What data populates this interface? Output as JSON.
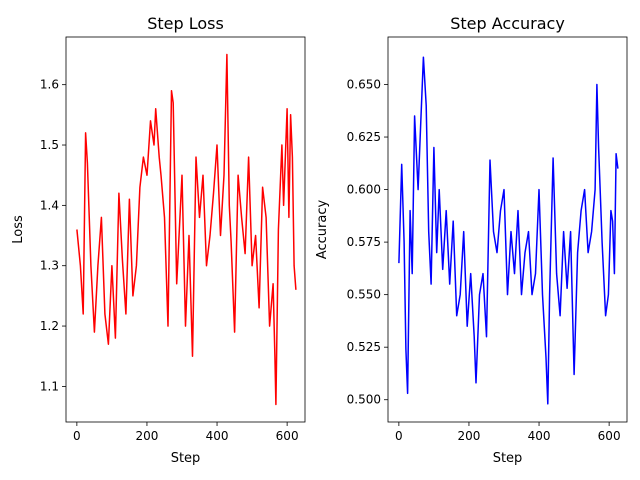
{
  "chart_data": [
    {
      "type": "line",
      "title": "Step Loss",
      "xlabel": "Step",
      "ylabel": "Loss",
      "xlim": [
        -31,
        651
      ],
      "ylim": [
        1.041,
        1.679
      ],
      "xticks": [
        0,
        200,
        400,
        600
      ],
      "xtick_labels": [
        "0",
        "200",
        "400",
        "600"
      ],
      "yticks": [
        1.1,
        1.2,
        1.3,
        1.4,
        1.5,
        1.6
      ],
      "ytick_labels": [
        "1.1",
        "1.2",
        "1.3",
        "1.4",
        "1.5",
        "1.6"
      ],
      "color": "#ff0000",
      "series": [
        {
          "x": [
            0,
            10,
            18,
            25,
            30,
            40,
            50,
            60,
            70,
            80,
            90,
            100,
            110,
            120,
            130,
            140,
            150,
            160,
            170,
            180,
            190,
            200,
            210,
            220,
            225,
            235,
            240,
            250,
            260,
            270,
            275,
            285,
            300,
            310,
            320,
            330,
            340,
            350,
            360,
            370,
            380,
            390,
            400,
            410,
            420,
            428,
            435,
            440,
            450,
            460,
            470,
            480,
            490,
            500,
            510,
            520,
            530,
            540,
            550,
            560,
            565,
            568,
            575,
            585,
            590,
            600,
            605,
            610,
            615,
            620,
            625
          ],
          "values": [
            1.36,
            1.3,
            1.22,
            1.52,
            1.47,
            1.3,
            1.19,
            1.3,
            1.38,
            1.22,
            1.17,
            1.3,
            1.18,
            1.42,
            1.31,
            1.22,
            1.41,
            1.25,
            1.3,
            1.43,
            1.48,
            1.45,
            1.54,
            1.5,
            1.56,
            1.48,
            1.45,
            1.38,
            1.2,
            1.59,
            1.57,
            1.27,
            1.45,
            1.2,
            1.35,
            1.15,
            1.48,
            1.38,
            1.45,
            1.3,
            1.35,
            1.42,
            1.5,
            1.35,
            1.45,
            1.65,
            1.4,
            1.34,
            1.19,
            1.45,
            1.38,
            1.32,
            1.48,
            1.3,
            1.35,
            1.23,
            1.43,
            1.38,
            1.2,
            1.27,
            1.15,
            1.07,
            1.36,
            1.5,
            1.4,
            1.56,
            1.38,
            1.55,
            1.48,
            1.3,
            1.26
          ]
        }
      ]
    },
    {
      "type": "line",
      "title": "Step Accuracy",
      "xlabel": "Step",
      "ylabel": "Accuracy",
      "xlim": [
        -31,
        651
      ],
      "ylim": [
        0.4894,
        0.6726
      ],
      "xticks": [
        0,
        200,
        400,
        600
      ],
      "xtick_labels": [
        "0",
        "200",
        "400",
        "600"
      ],
      "yticks": [
        0.5,
        0.525,
        0.55,
        0.575,
        0.6,
        0.625,
        0.65
      ],
      "ytick_labels": [
        "0.500",
        "0.525",
        "0.550",
        "0.575",
        "0.600",
        "0.625",
        "0.650"
      ],
      "color": "#0000ff",
      "series": [
        {
          "x": [
            0,
            8,
            15,
            20,
            25,
            32,
            38,
            45,
            55,
            62,
            70,
            78,
            85,
            92,
            100,
            108,
            115,
            125,
            135,
            145,
            155,
            165,
            175,
            185,
            195,
            205,
            215,
            220,
            230,
            240,
            250,
            260,
            270,
            280,
            290,
            300,
            310,
            320,
            330,
            340,
            350,
            360,
            370,
            380,
            390,
            400,
            410,
            420,
            425,
            430,
            440,
            450,
            460,
            470,
            480,
            490,
            500,
            510,
            520,
            530,
            540,
            550,
            560,
            565,
            570,
            580,
            590,
            598,
            605,
            610,
            615,
            620,
            625
          ],
          "values": [
            0.565,
            0.612,
            0.575,
            0.524,
            0.503,
            0.59,
            0.56,
            0.635,
            0.6,
            0.63,
            0.663,
            0.64,
            0.58,
            0.555,
            0.62,
            0.57,
            0.6,
            0.562,
            0.59,
            0.555,
            0.585,
            0.54,
            0.55,
            0.58,
            0.535,
            0.56,
            0.53,
            0.508,
            0.55,
            0.56,
            0.53,
            0.614,
            0.58,
            0.57,
            0.59,
            0.6,
            0.55,
            0.58,
            0.56,
            0.59,
            0.55,
            0.57,
            0.58,
            0.55,
            0.56,
            0.6,
            0.55,
            0.52,
            0.498,
            0.55,
            0.615,
            0.56,
            0.54,
            0.58,
            0.553,
            0.58,
            0.512,
            0.57,
            0.59,
            0.6,
            0.57,
            0.58,
            0.6,
            0.65,
            0.62,
            0.575,
            0.54,
            0.55,
            0.59,
            0.585,
            0.56,
            0.617,
            0.61
          ]
        }
      ]
    }
  ]
}
